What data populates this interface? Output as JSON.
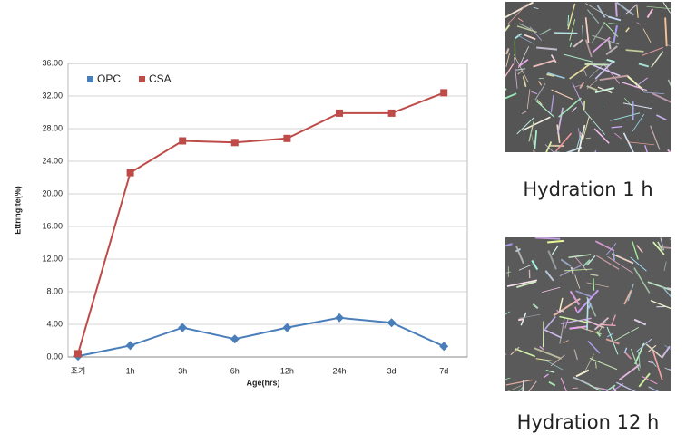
{
  "chart_data": {
    "type": "line",
    "categories": [
      "조기",
      "1h",
      "3h",
      "6h",
      "12h",
      "24h",
      "3d",
      "7d"
    ],
    "series": [
      {
        "name": "OPC",
        "color": "#4a7ebb",
        "marker": "diamond",
        "values": [
          0.1,
          1.4,
          3.6,
          2.2,
          3.6,
          4.8,
          4.2,
          1.3
        ]
      },
      {
        "name": "CSA",
        "color": "#be4b48",
        "marker": "square",
        "values": [
          0.4,
          22.6,
          26.5,
          26.3,
          26.8,
          29.9,
          29.9,
          32.4
        ]
      }
    ],
    "ylim": [
      0,
      36
    ],
    "yticks": [
      {
        "value": 0,
        "label": "0.00"
      },
      {
        "value": 4,
        "label": "4.00"
      },
      {
        "value": 8,
        "label": "8.00"
      },
      {
        "value": 12,
        "label": "12.00"
      },
      {
        "value": 16,
        "label": "16.00"
      },
      {
        "value": 20,
        "label": "20.00"
      },
      {
        "value": 24,
        "label": "24.00"
      },
      {
        "value": 28,
        "label": "28.00"
      },
      {
        "value": 32,
        "label": "32.00"
      },
      {
        "value": 36,
        "label": "36.00"
      }
    ],
    "xlabel": "Age(hrs)",
    "ylabel": "Ettringite(%)",
    "grid": true,
    "legend": "top-left"
  },
  "images": [
    {
      "caption": "Hydration 1 h"
    },
    {
      "caption": "Hydration 12 h"
    }
  ]
}
